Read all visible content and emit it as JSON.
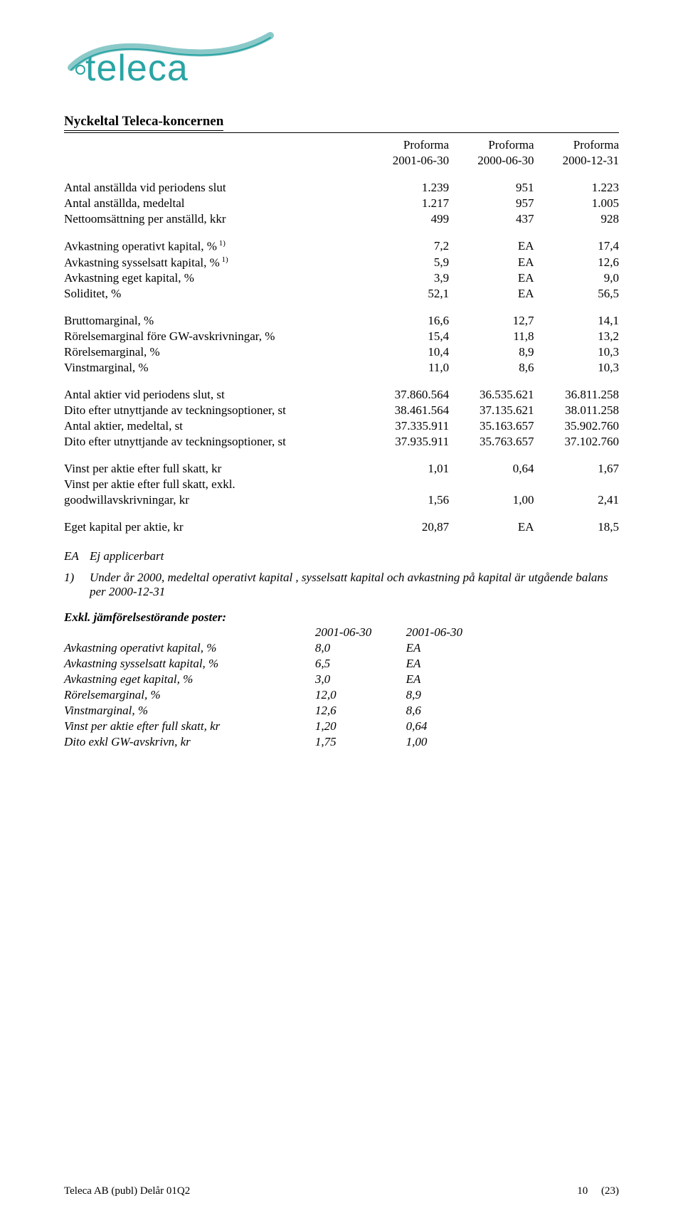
{
  "logo": {
    "text": "teleca",
    "color": "#2aa4a4",
    "swoosh_color": "#8bc9c9"
  },
  "section_title": "Nyckeltal Teleca-koncernen",
  "headers": {
    "h1": "Proforma",
    "d1": "2001-06-30",
    "d2": "2000-06-30",
    "d3": "2000-12-31"
  },
  "rows_g1": [
    {
      "label": "Antal anställda vid periodens slut",
      "v1": "1.239",
      "v2": "951",
      "v3": "1.223"
    },
    {
      "label": "Antal anställda, medeltal",
      "v1": "1.217",
      "v2": "957",
      "v3": "1.005"
    },
    {
      "label": "Nettoomsättning per anställd, kkr",
      "v1": "499",
      "v2": "437",
      "v3": "928"
    }
  ],
  "rows_g2": [
    {
      "label": "Avkastning operativt kapital, %",
      "sup": "1)",
      "v1": "7,2",
      "v2": "EA",
      "v3": "17,4"
    },
    {
      "label": "Avkastning sysselsatt kapital, %",
      "sup": "1)",
      "v1": "5,9",
      "v2": "EA",
      "v3": "12,6"
    },
    {
      "label": "Avkastning eget kapital, %",
      "v1": "3,9",
      "v2": "EA",
      "v3": "9,0"
    },
    {
      "label": "Soliditet, %",
      "v1": "52,1",
      "v2": "EA",
      "v3": "56,5"
    }
  ],
  "rows_g3": [
    {
      "label": "Bruttomarginal, %",
      "v1": "16,6",
      "v2": "12,7",
      "v3": "14,1"
    },
    {
      "label": "Rörelsemarginal före GW-avskrivningar, %",
      "v1": "15,4",
      "v2": "11,8",
      "v3": "13,2"
    },
    {
      "label": "Rörelsemarginal, %",
      "v1": "10,4",
      "v2": "8,9",
      "v3": "10,3"
    },
    {
      "label": "Vinstmarginal, %",
      "v1": "11,0",
      "v2": "8,6",
      "v3": "10,3"
    }
  ],
  "rows_g4": [
    {
      "label": "Antal aktier vid periodens slut, st",
      "v1": "37.860.564",
      "v2": "36.535.621",
      "v3": "36.811.258"
    },
    {
      "label": "Dito efter utnyttjande av teckningsoptioner, st",
      "v1": "38.461.564",
      "v2": "37.135.621",
      "v3": "38.011.258"
    },
    {
      "label": "Antal aktier, medeltal, st",
      "v1": "37.335.911",
      "v2": "35.163.657",
      "v3": "35.902.760"
    },
    {
      "label": "Dito efter utnyttjande av teckningsoptioner, st",
      "v1": "37.935.911",
      "v2": "35.763.657",
      "v3": "37.102.760"
    }
  ],
  "rows_g5": [
    {
      "label": "Vinst per aktie efter full skatt, kr",
      "v1": "1,01",
      "v2": "0,64",
      "v3": "1,67"
    },
    {
      "label": "Vinst per aktie efter full skatt, exkl.",
      "v1": "",
      "v2": "",
      "v3": ""
    },
    {
      "label": "goodwillavskrivningar, kr",
      "v1": "1,56",
      "v2": "1,00",
      "v3": "2,41"
    }
  ],
  "rows_g6": [
    {
      "label": "Eget kapital per aktie, kr",
      "v1": "20,87",
      "v2": "EA",
      "v3": "18,5"
    }
  ],
  "footnotes": {
    "ea": {
      "key": "EA",
      "text": "Ej applicerbart"
    },
    "f1": {
      "key": "1)",
      "text": "Under år 2000, medeltal operativt kapital , sysselsatt kapital och avkastning på kapital är utgående balans per 2000-12-31"
    }
  },
  "excl": {
    "title": "Exkl. jämförelsestörande poster:",
    "h1": "2001-06-30",
    "h2": "2001-06-30",
    "rows": [
      {
        "label": "Avkastning operativt kapital, %",
        "v1": "8,0",
        "v2": "EA"
      },
      {
        "label": "Avkastning sysselsatt kapital, %",
        "v1": "6,5",
        "v2": "EA"
      },
      {
        "label": "Avkastning eget kapital, %",
        "v1": "3,0",
        "v2": "EA"
      },
      {
        "label": "Rörelsemarginal, %",
        "v1": "12,0",
        "v2": "8,9"
      },
      {
        "label": "Vinstmarginal, %",
        "v1": "12,6",
        "v2": "8,6"
      },
      {
        "label": "Vinst per aktie efter full skatt, kr",
        "v1": "1,20",
        "v2": "0,64"
      },
      {
        "label": "Dito exkl GW-avskrivn, kr",
        "v1": "1,75",
        "v2": "1,00"
      }
    ]
  },
  "footer": {
    "left": "Teleca AB (publ) Delår 01Q2",
    "page_no": "10",
    "page_total": "(23)"
  }
}
